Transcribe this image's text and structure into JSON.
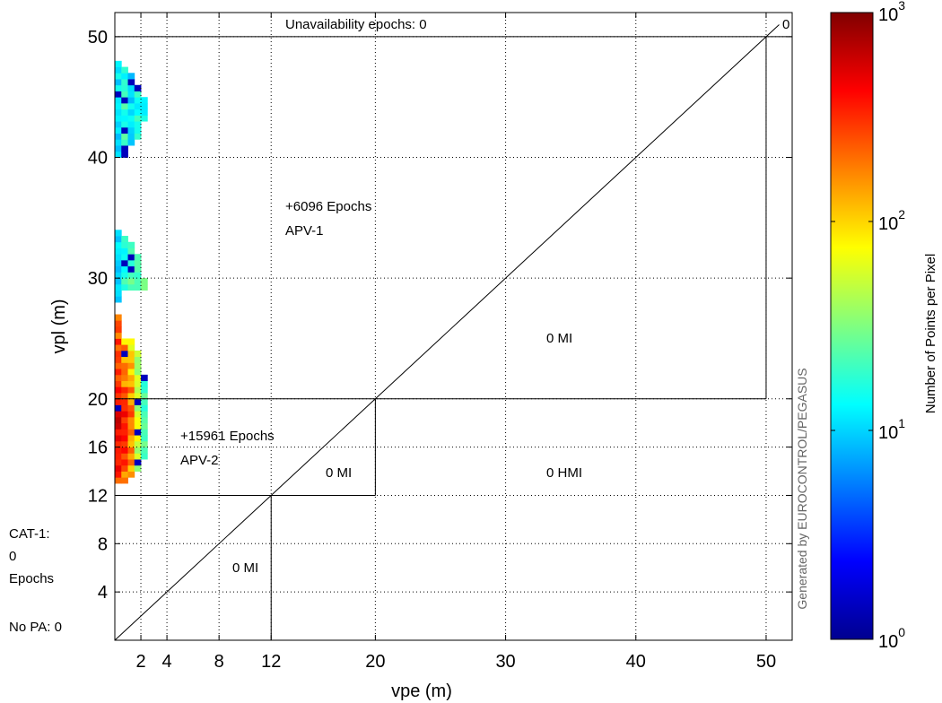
{
  "chart_data": {
    "type": "heatmap",
    "title": "",
    "xlabel": "vpe (m)",
    "ylabel": "vpl (m)",
    "xlim": [
      0,
      52
    ],
    "ylim": [
      0,
      52
    ],
    "xticks": [
      2,
      4,
      8,
      12,
      20,
      30,
      40,
      50
    ],
    "yticks": [
      4,
      8,
      12,
      16,
      20,
      30,
      40,
      50
    ],
    "grid": true,
    "unavailability": "Unavailability epochs: 0",
    "corner_count": "0",
    "region_labels": [
      {
        "text": "+6096 Epochs",
        "region": "APV-1 region"
      },
      {
        "text": "APV-1",
        "region": "APV-1 region"
      },
      {
        "text": "+15961 Epochs",
        "region": "APV-2 region"
      },
      {
        "text": "APV-2",
        "region": "APV-2 region"
      },
      {
        "text": "0 MI",
        "region": "APV-1 misleading"
      },
      {
        "text": "0 MI",
        "region": "APV-2 misleading"
      },
      {
        "text": "0 HMI",
        "region": "hazardous"
      },
      {
        "text": "0 MI",
        "region": "CAT-1 misleading"
      }
    ],
    "side_text": [
      "CAT-1:",
      "0",
      "Epochs",
      "No PA: 0"
    ],
    "credit": "Generated by EUROCONTROL/PEGASUS",
    "colorbar": {
      "label": "Number of Points per Pixel",
      "scale": "log",
      "ticks": [
        "10",
        "10",
        "10",
        "10"
      ],
      "exponents": [
        "0",
        "1",
        "2",
        "3"
      ],
      "colormap": [
        "#00008f",
        "#0000ff",
        "#0080ff",
        "#00ffff",
        "#80ff80",
        "#ffff00",
        "#ff8000",
        "#ff0000",
        "#800000"
      ]
    },
    "density_columns": [
      {
        "x": [
          0,
          0.5
        ],
        "segments": [
          {
            "y": [
              40,
              48
            ],
            "level": "cyan-blue"
          },
          {
            "y": [
              28,
              34
            ],
            "level": "cyan-blue"
          },
          {
            "y": [
              13,
              27
            ],
            "level": "red-orange"
          }
        ]
      },
      {
        "x": [
          0.5,
          1.0
        ],
        "segments": [
          {
            "y": [
              40,
              47.5
            ],
            "level": "cyan-green"
          },
          {
            "y": [
              29,
              33.5
            ],
            "level": "cyan-green"
          },
          {
            "y": [
              13,
              25
            ],
            "level": "red-yellow"
          }
        ]
      },
      {
        "x": [
          1.0,
          1.5
        ],
        "segments": [
          {
            "y": [
              41,
              47
            ],
            "level": "cyan-blue"
          },
          {
            "y": [
              29,
              33
            ],
            "level": "green-cyan"
          },
          {
            "y": [
              13.5,
              25
            ],
            "level": "orange-yellow"
          }
        ]
      },
      {
        "x": [
          1.5,
          2.0
        ],
        "segments": [
          {
            "y": [
              41.5,
              46
            ],
            "level": "cyan"
          },
          {
            "y": [
              29,
              32
            ],
            "level": "green-cyan"
          },
          {
            "y": [
              14,
              24
            ],
            "level": "yellow-green"
          }
        ]
      },
      {
        "x": [
          2.0,
          2.5
        ],
        "segments": [
          {
            "y": [
              43,
              45
            ],
            "level": "cyan"
          },
          {
            "y": [
              29,
              30
            ],
            "level": "green"
          },
          {
            "y": [
              15,
              22
            ],
            "level": "green-cyan"
          }
        ]
      }
    ]
  }
}
